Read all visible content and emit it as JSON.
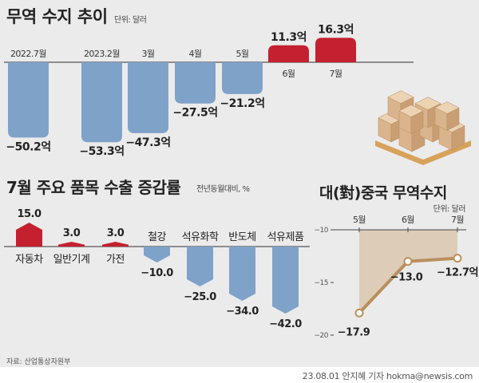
{
  "chart_data": [
    {
      "type": "bar",
      "title": "무역 수지 추이",
      "unit_label": "단위: 달러",
      "categories": [
        "2022.7월",
        "2023.2월",
        "3월",
        "4월",
        "5월",
        "6월",
        "7월"
      ],
      "values": [
        -50.2,
        -53.3,
        -47.3,
        -27.5,
        -21.2,
        11.3,
        16.3
      ],
      "value_labels": [
        "−50.2억",
        "−53.3억",
        "−47.3억",
        "−27.5억",
        "−21.2억",
        "11.3억",
        "16.3억"
      ],
      "xlabel": "",
      "ylabel": "",
      "colors": {
        "negative": "#7fa2c8",
        "positive": "#c4202f"
      }
    },
    {
      "type": "bar",
      "title": "7월 주요 품목 수출 증감률",
      "unit_label": "전년동월대비, %",
      "categories": [
        "자동차",
        "일반기계",
        "가전",
        "철강",
        "석유화학",
        "반도체",
        "석유제품"
      ],
      "values": [
        15.0,
        3.0,
        3.0,
        -10.0,
        -25.0,
        -34.0,
        -42.0
      ],
      "value_labels": [
        "15.0",
        "3.0",
        "3.0",
        "−10.0",
        "−25.0",
        "−34.0",
        "−42.0"
      ],
      "xlabel": "",
      "ylabel": "",
      "colors": {
        "negative": "#7fa2c8",
        "positive": "#c4202f"
      }
    },
    {
      "type": "line",
      "title": "대(對)중국 무역수지",
      "unit_label": "단위: 달러",
      "categories": [
        "5월",
        "6월",
        "7월"
      ],
      "values": [
        -17.9,
        -13.0,
        -12.7
      ],
      "value_labels": [
        "−17.9",
        "−13.0",
        "−12.7억"
      ],
      "ylim": [
        -20,
        -10
      ],
      "yticks": [
        -10,
        -15,
        -20
      ],
      "ytick_labels": [
        "−10",
        "−15",
        "−20"
      ],
      "colors": {
        "line": "#b98f5c",
        "area": "#dcccb8"
      }
    }
  ],
  "footer": {
    "source": "자료: 산업통상자원부",
    "credit": "23.08.01 안지혜 기자 hokma@newsis.com"
  }
}
